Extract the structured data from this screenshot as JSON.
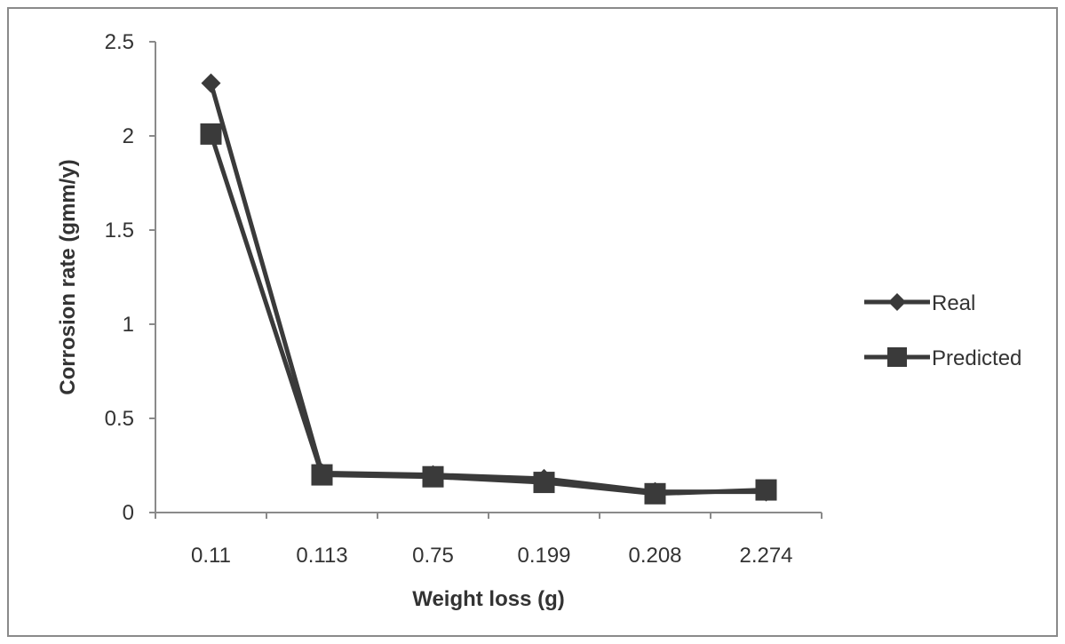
{
  "chart_data": {
    "type": "line",
    "title": "",
    "xlabel": "Weight loss (g)",
    "ylabel": "Corrosion rate (gmm/y)",
    "categories": [
      "0.11",
      "0.113",
      "0.75",
      "0.199",
      "0.208",
      "2.274"
    ],
    "ylim": [
      0,
      2.5
    ],
    "yticks": [
      "0",
      "0.5",
      "1",
      "1.5",
      "2",
      "2.5"
    ],
    "grid": false,
    "legend_position": "right",
    "series": [
      {
        "name": "Real",
        "marker": "diamond",
        "color": "#3a3a3a",
        "values": [
          2.28,
          0.21,
          0.2,
          0.18,
          0.11,
          0.11
        ]
      },
      {
        "name": "Predicted",
        "marker": "square",
        "color": "#3a3a3a",
        "values": [
          2.01,
          0.2,
          0.19,
          0.16,
          0.1,
          0.12
        ]
      }
    ]
  }
}
